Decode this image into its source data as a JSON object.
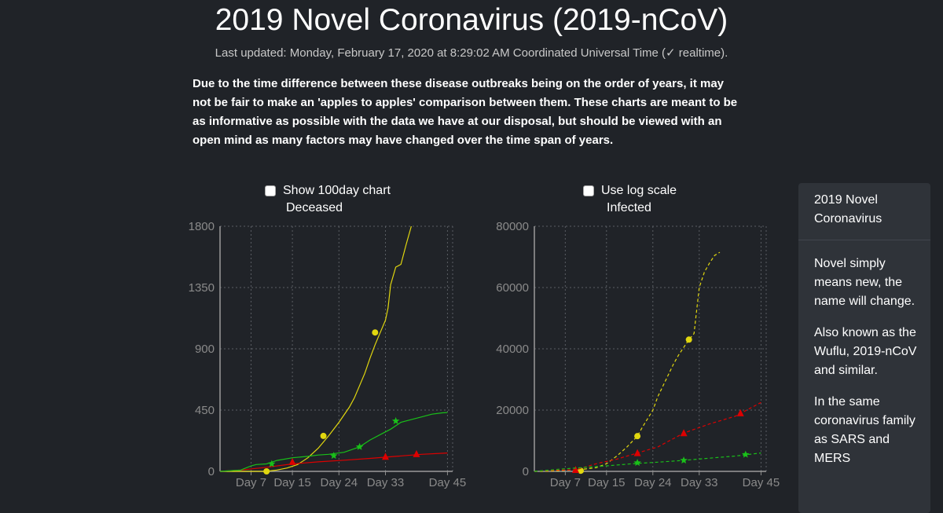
{
  "header": {
    "title": "2019 Novel Coronavirus (2019-nCoV)",
    "updated": "Last updated: Monday, February 17, 2020 at 8:29:02 AM Coordinated Universal Time (✓ realtime)."
  },
  "notice": "Due to the time difference between these disease outbreaks being on the order of years, it may not be fair to make an 'apples to apples' comparison between them. These charts are meant to be as informative as possible with the data we have at our disposal, but should be viewed with an open mind as many factors may have changed over the time span of years.",
  "controls": {
    "show_100day_label": "Show 100day chart",
    "show_100day_checked": false,
    "log_scale_label": "Use log scale",
    "log_scale_checked": false
  },
  "colors": {
    "background": "#202328",
    "ncov": "#e1d70f",
    "sars": "#dd0000",
    "mers": "#19c019",
    "grid": "#5a5e64",
    "axis_text": "#8a8a8a"
  },
  "sidebar": {
    "heading": "2019 Novel Coronavirus",
    "paragraphs": [
      "Novel simply means new, the name will change.",
      "Also known as the Wuflu, 2019-nCoV and similar.",
      "In the same coronavirus family as SARS and MERS"
    ]
  },
  "chart_data": [
    {
      "type": "line",
      "title": "Deceased",
      "x_tick_labels": [
        "Day 7",
        "Day 15",
        "Day 24",
        "Day 33",
        "Day 45"
      ],
      "x_ticks": [
        7,
        15,
        24,
        33,
        45
      ],
      "xlim": [
        1,
        46
      ],
      "ylim": [
        0,
        1800
      ],
      "y_ticks": [
        0,
        450,
        900,
        1350,
        1800
      ],
      "grid": true,
      "series": [
        {
          "color": "#e1d70f",
          "marker": "circle",
          "markers": [
            [
              10,
              0
            ],
            [
              21,
              260
            ],
            [
              31,
              1020
            ]
          ],
          "x": [
            1,
            5,
            8,
            10,
            11,
            12,
            14,
            16,
            18,
            20,
            22,
            24,
            26,
            27,
            28,
            29,
            30,
            31,
            32,
            33,
            33.5,
            34,
            35,
            36,
            37,
            38
          ],
          "y": [
            0,
            0,
            0,
            0,
            5,
            10,
            25,
            50,
            100,
            170,
            260,
            360,
            470,
            540,
            630,
            720,
            830,
            930,
            1020,
            1110,
            1200,
            1370,
            1500,
            1520,
            1665,
            1800
          ]
        },
        {
          "color": "#dd0000",
          "marker": "triangle",
          "markers": [
            [
              15,
              70
            ],
            [
              33,
              108
            ],
            [
              39,
              128
            ]
          ],
          "x": [
            1,
            5,
            10,
            15,
            20,
            25,
            30,
            35,
            40,
            45
          ],
          "y": [
            0,
            10,
            30,
            55,
            70,
            82,
            95,
            110,
            125,
            135
          ]
        },
        {
          "color": "#19c019",
          "marker": "star",
          "markers": [
            [
              11,
              55
            ],
            [
              23,
              115
            ],
            [
              28,
              180
            ],
            [
              35,
              370
            ]
          ],
          "x": [
            1,
            3,
            5,
            7,
            8,
            10,
            12,
            15,
            18,
            20,
            22,
            25,
            28,
            30,
            32,
            34,
            36,
            38,
            40,
            42,
            44,
            45
          ],
          "y": [
            0,
            5,
            10,
            40,
            50,
            55,
            80,
            100,
            110,
            120,
            125,
            140,
            180,
            230,
            270,
            310,
            360,
            380,
            400,
            420,
            430,
            432
          ]
        }
      ]
    },
    {
      "type": "line",
      "title": "Infected",
      "x_tick_labels": [
        "Day 7",
        "Day 15",
        "Day 24",
        "Day 33",
        "Day 45"
      ],
      "x_ticks": [
        7,
        15,
        24,
        33,
        45
      ],
      "xlim": [
        1,
        46
      ],
      "ylim": [
        0,
        80000
      ],
      "y_ticks": [
        0,
        20000,
        40000,
        60000,
        80000
      ],
      "grid": true,
      "series": [
        {
          "color": "#e1d70f",
          "marker": "circle",
          "markers": [
            [
              10,
              200
            ],
            [
              21,
              11500
            ],
            [
              31,
              43000
            ]
          ],
          "x": [
            1,
            4,
            7,
            10,
            13,
            15,
            17,
            19,
            21,
            22,
            24,
            25,
            26,
            27,
            28,
            29,
            30,
            31,
            32,
            33,
            34,
            35,
            36,
            37
          ],
          "y": [
            0,
            100,
            300,
            600,
            1200,
            2500,
            5000,
            8000,
            11500,
            14500,
            20000,
            24500,
            28000,
            31500,
            35000,
            38000,
            40500,
            43000,
            45000,
            60000,
            65000,
            68000,
            70500,
            71500
          ]
        },
        {
          "color": "#dd0000",
          "marker": "triangle",
          "markers": [
            [
              9,
              500
            ],
            [
              21,
              6000
            ],
            [
              30,
              12500
            ],
            [
              41,
              19000
            ]
          ],
          "x": [
            1,
            5,
            9,
            13,
            17,
            21,
            25,
            30,
            35,
            40,
            45
          ],
          "y": [
            0,
            400,
            500,
            2500,
            4000,
            6000,
            8000,
            12500,
            15500,
            18000,
            22500
          ]
        },
        {
          "color": "#19c019",
          "marker": "star",
          "markers": [
            [
              21,
              2800
            ],
            [
              30,
              3600
            ],
            [
              42,
              5500
            ]
          ],
          "x": [
            1,
            5,
            10,
            15,
            20,
            25,
            30,
            35,
            40,
            45
          ],
          "y": [
            0,
            600,
            1200,
            1800,
            2500,
            3000,
            3600,
            4300,
            5000,
            6000
          ]
        }
      ]
    }
  ]
}
